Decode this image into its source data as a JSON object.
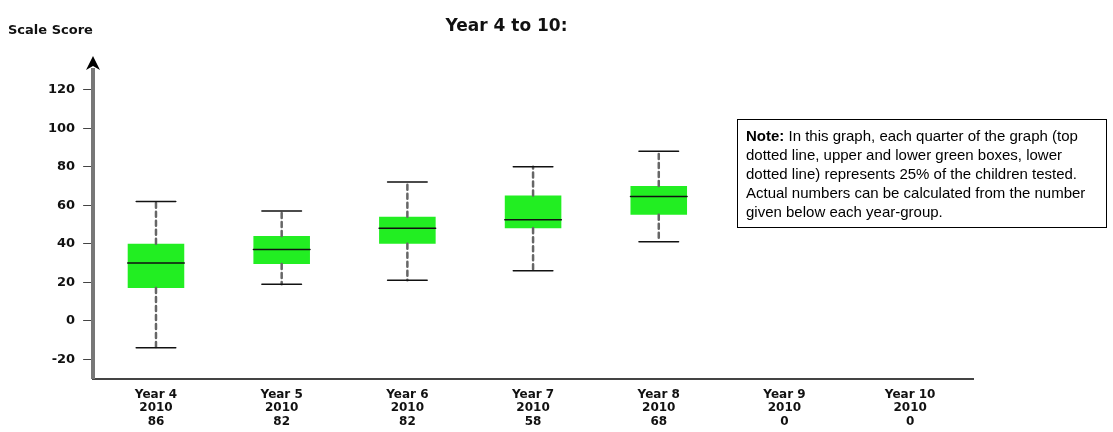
{
  "chart_data": {
    "type": "box",
    "title": "Year 4 to 10:",
    "ylabel": "Scale Score",
    "categories": [
      "Year 4\n2010\n86",
      "Year 5\n2010\n82",
      "Year 6\n2010\n82",
      "Year 7\n2010\n58",
      "Year 8\n2010\n68",
      "Year 9\n2010\n0",
      "Year 10\n2010\n0"
    ],
    "series": [
      {
        "color": "#22ee22",
        "boxes": [
          {
            "low": -14,
            "q1": 17,
            "median": 30,
            "q3": 40,
            "high": 62
          },
          {
            "low": 19,
            "q1": 29.5,
            "median": 37,
            "q3": 44,
            "high": 57
          },
          {
            "low": 21,
            "q1": 40,
            "median": 48,
            "q3": 54,
            "high": 72
          },
          {
            "low": 26,
            "q1": 48,
            "median": 52.5,
            "q3": 65,
            "high": 80
          },
          {
            "low": 41,
            "q1": 55,
            "median": 64.5,
            "q3": 70,
            "high": 88
          },
          null,
          null
        ]
      }
    ],
    "ylim": [
      -30,
      130
    ],
    "yticks": [
      -20,
      0,
      20,
      40,
      60,
      80,
      100,
      120
    ],
    "grid": false,
    "legend": false,
    "annotations": [
      "Note: In this graph, each quarter of the graph (top dotted line, upper and lower green boxes, lower dotted line) represents 25% of the children tested. Actual numbers can be calculated from the number given below each year-group."
    ]
  }
}
